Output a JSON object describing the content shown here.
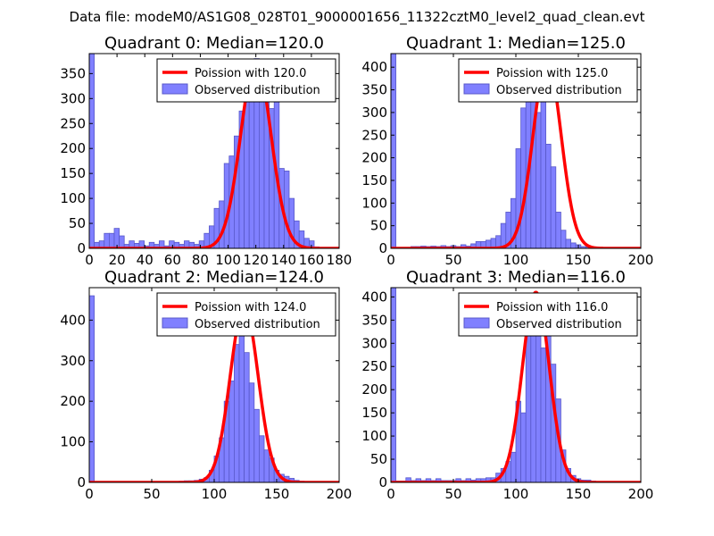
{
  "suptitle": "Data file: modeM0/AS1G08_028T01_9000001656_11322cztM0_level2_quad_clean.evt",
  "colors": {
    "hist_fill": "#8080ff",
    "hist_edge": "#5858c8",
    "poisson_line": "#ff0000",
    "background": "#ffffff"
  },
  "chart_data": [
    {
      "type": "bar",
      "title": "Quadrant 0: Median=120.0",
      "xlim": [
        0,
        180
      ],
      "ylim": [
        0,
        390
      ],
      "xticks": [
        0,
        20,
        40,
        60,
        80,
        100,
        120,
        140,
        160,
        180
      ],
      "xtick_labels": [
        "0",
        "20",
        "40",
        "60",
        "80",
        "100",
        "120",
        "140",
        "160",
        "180"
      ],
      "yticks": [
        0,
        50,
        100,
        150,
        200,
        250,
        300,
        350
      ],
      "ytick_labels": [
        "0",
        "50",
        "100",
        "150",
        "200",
        "250",
        "300",
        "350"
      ],
      "bin_width": 3.6,
      "counts": [
        390,
        12,
        15,
        30,
        30,
        40,
        25,
        8,
        15,
        10,
        15,
        5,
        12,
        8,
        15,
        5,
        15,
        12,
        8,
        15,
        12,
        8,
        15,
        30,
        45,
        80,
        95,
        170,
        185,
        225,
        275,
        320,
        330,
        380,
        350,
        345,
        280,
        305,
        160,
        155,
        100,
        55,
        35,
        20,
        15,
        3,
        1,
        0,
        0,
        0
      ],
      "poisson_mean": 120.0,
      "poisson_peak": 375,
      "legend": [
        "Poission with 120.0",
        "Observed distribution"
      ],
      "legend_loc": "upper right"
    },
    {
      "type": "bar",
      "title": "Quadrant 1: Median=125.0",
      "xlim": [
        0,
        200
      ],
      "ylim": [
        0,
        430
      ],
      "xticks": [
        0,
        50,
        100,
        150,
        200
      ],
      "xtick_labels": [
        "0",
        "50",
        "100",
        "150",
        "200"
      ],
      "yticks": [
        0,
        50,
        100,
        150,
        200,
        250,
        300,
        350,
        400
      ],
      "ytick_labels": [
        "0",
        "50",
        "100",
        "150",
        "200",
        "250",
        "300",
        "350",
        "400"
      ],
      "bin_width": 4,
      "counts": [
        430,
        2,
        2,
        2,
        4,
        4,
        5,
        4,
        5,
        4,
        6,
        4,
        6,
        4,
        8,
        5,
        10,
        15,
        15,
        18,
        22,
        28,
        55,
        80,
        110,
        220,
        310,
        380,
        370,
        300,
        360,
        230,
        180,
        80,
        40,
        20,
        12,
        8,
        4,
        3,
        2,
        2,
        0,
        0,
        0,
        0,
        0,
        0,
        0,
        0
      ],
      "poisson_mean": 125.0,
      "poisson_peak": 415,
      "legend": [
        "Poission with 125.0",
        "Observed distribution"
      ],
      "legend_loc": "upper right"
    },
    {
      "type": "bar",
      "title": "Quadrant 2: Median=124.0",
      "xlim": [
        0,
        200
      ],
      "ylim": [
        0,
        480
      ],
      "xticks": [
        0,
        50,
        100,
        150,
        200
      ],
      "xtick_labels": [
        "0",
        "50",
        "100",
        "150",
        "200"
      ],
      "yticks": [
        0,
        100,
        200,
        300,
        400
      ],
      "ytick_labels": [
        "0",
        "100",
        "200",
        "300",
        "400"
      ],
      "bin_width": 4,
      "counts": [
        460,
        2,
        2,
        2,
        2,
        2,
        2,
        2,
        2,
        2,
        2,
        2,
        2,
        2,
        2,
        2,
        2,
        2,
        3,
        4,
        4,
        5,
        8,
        12,
        30,
        65,
        110,
        200,
        250,
        340,
        400,
        320,
        245,
        180,
        115,
        80,
        60,
        30,
        20,
        15,
        10,
        5,
        3,
        2,
        1,
        0,
        0,
        0,
        0,
        0
      ],
      "poisson_mean": 124.0,
      "poisson_peak": 435,
      "legend": [
        "Poission with 124.0",
        "Observed distribution"
      ],
      "legend_loc": "upper right"
    },
    {
      "type": "bar",
      "title": "Quadrant 3: Median=116.0",
      "xlim": [
        0,
        200
      ],
      "ylim": [
        0,
        420
      ],
      "xticks": [
        0,
        50,
        100,
        150,
        200
      ],
      "xtick_labels": [
        "0",
        "50",
        "100",
        "150",
        "200"
      ],
      "yticks": [
        0,
        50,
        100,
        150,
        200,
        250,
        300,
        350,
        400
      ],
      "ytick_labels": [
        "0",
        "50",
        "100",
        "150",
        "200",
        "250",
        "300",
        "350",
        "400"
      ],
      "bin_width": 4,
      "counts": [
        420,
        3,
        3,
        10,
        4,
        8,
        4,
        8,
        4,
        8,
        4,
        4,
        4,
        8,
        4,
        8,
        5,
        8,
        8,
        10,
        10,
        20,
        30,
        45,
        65,
        175,
        150,
        350,
        400,
        370,
        290,
        335,
        255,
        180,
        70,
        30,
        15,
        8,
        5,
        5,
        3,
        2,
        1,
        0,
        0,
        0,
        0,
        0,
        0,
        0
      ],
      "poisson_mean": 116.0,
      "poisson_peak": 410,
      "legend": [
        "Poission with 116.0",
        "Observed distribution"
      ],
      "legend_loc": "upper right"
    }
  ]
}
